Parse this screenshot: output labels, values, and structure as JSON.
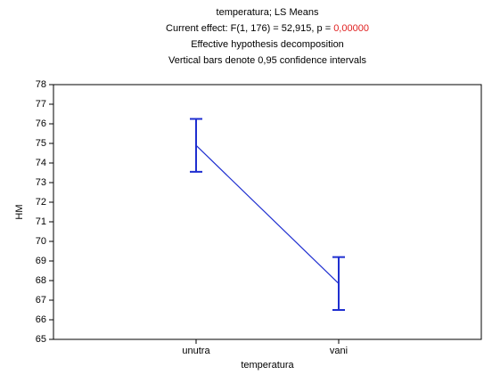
{
  "chart_data": {
    "type": "line",
    "title": "temperatura; LS Means",
    "effect": "Current effect: F(1, 176) = 52,915, p =",
    "p_value": "0,00000",
    "subtitle": "Effective hypothesis decomposition",
    "note": "Vertical bars denote 0,95 confidence intervals",
    "x_label": "temperatura",
    "y_label": "HM",
    "categories": [
      "unutra",
      "vani"
    ],
    "values": [
      74.9,
      67.85
    ],
    "errors": [
      1.35,
      1.35
    ],
    "color": "#1f2fd0",
    "p_color": "#e02020",
    "ylim": [
      65,
      78
    ],
    "yticks": [
      65,
      66,
      67,
      68,
      69,
      70,
      71,
      72,
      73,
      74,
      75,
      76,
      77,
      78
    ],
    "grid": false
  }
}
